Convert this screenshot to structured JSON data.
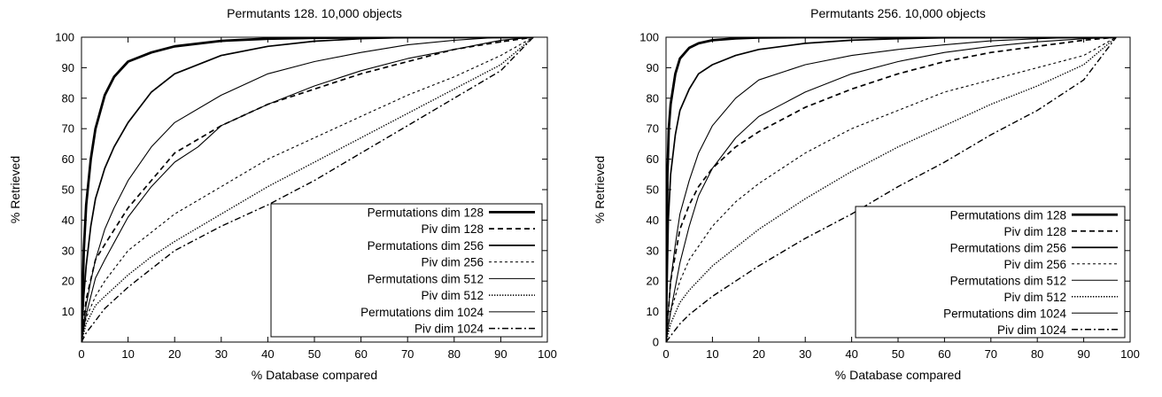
{
  "chart_data": [
    {
      "type": "line",
      "title": "Permutants 128. 10,000 objects",
      "xlabel": "% Database compared",
      "ylabel": "% Retrieved",
      "xlim": [
        0,
        100
      ],
      "ylim": [
        0,
        100
      ],
      "x_ticks": [
        "0",
        "10",
        "20",
        "30",
        "40",
        "50",
        "60",
        "70",
        "80",
        "90",
        "100"
      ],
      "y_ticks": [
        "10",
        "20",
        "30",
        "40",
        "50",
        "60",
        "70",
        "80",
        "90",
        "100"
      ],
      "grid": false,
      "legend_position": "bottom-right",
      "series": [
        {
          "name": "Permutations dim 128",
          "style": "thick-solid",
          "x": [
            0,
            0.5,
            1,
            2,
            3,
            5,
            7,
            10,
            15,
            20,
            30,
            40,
            50,
            60,
            70,
            80,
            90,
            97
          ],
          "y": [
            0,
            30,
            45,
            60,
            70,
            81,
            87,
            92,
            95,
            97,
            98.8,
            99.5,
            99.8,
            99.9,
            100,
            100,
            100,
            100
          ]
        },
        {
          "name": "Piv dim 128",
          "style": "dashed",
          "x": [
            0,
            1,
            3,
            5,
            10,
            15,
            20,
            30,
            40,
            50,
            60,
            70,
            80,
            90,
            97
          ],
          "y": [
            0,
            14,
            27,
            32,
            44,
            53,
            62,
            71,
            78,
            83,
            88,
            92,
            96,
            98.5,
            100
          ]
        },
        {
          "name": "Permutations dim 256",
          "style": "medium-solid",
          "x": [
            0,
            0.5,
            1,
            2,
            3,
            5,
            7,
            10,
            15,
            20,
            30,
            40,
            50,
            60,
            70,
            80,
            90,
            97
          ],
          "y": [
            0,
            15,
            25,
            38,
            47,
            57,
            64,
            72,
            82,
            88,
            94,
            97,
            98.7,
            99.5,
            99.9,
            100,
            100,
            100
          ]
        },
        {
          "name": "Piv dim 256",
          "style": "fine-dashed",
          "x": [
            0,
            1,
            3,
            5,
            10,
            15,
            20,
            30,
            40,
            50,
            60,
            70,
            80,
            90,
            97
          ],
          "y": [
            0,
            8,
            15,
            20,
            30,
            36,
            42,
            51,
            60,
            67,
            74,
            81,
            87,
            94,
            100
          ]
        },
        {
          "name": "Permutations dim 512",
          "style": "thin-solid",
          "x": [
            0,
            1,
            2,
            3,
            5,
            7,
            10,
            15,
            20,
            30,
            40,
            50,
            60,
            70,
            80,
            90,
            97
          ],
          "y": [
            0,
            12,
            20,
            27,
            37,
            44,
            53,
            64,
            72,
            81,
            88,
            92,
            95,
            97.5,
            99,
            100,
            100
          ]
        },
        {
          "name": "Piv dim 512",
          "style": "dotted",
          "x": [
            0,
            1,
            3,
            5,
            10,
            15,
            20,
            30,
            40,
            50,
            60,
            70,
            80,
            90,
            97
          ],
          "y": [
            0,
            6,
            12,
            15,
            22,
            28,
            33,
            42,
            51,
            59,
            67,
            75,
            83,
            91,
            100
          ]
        },
        {
          "name": "Permutations dim 1024",
          "style": "thin-solid",
          "x": [
            0,
            1,
            3,
            5,
            10,
            15,
            20,
            25,
            30,
            40,
            50,
            60,
            70,
            80,
            90,
            97
          ],
          "y": [
            0,
            9,
            21,
            27,
            41,
            51,
            59,
            64,
            71,
            78,
            84,
            89,
            93,
            96,
            99,
            100
          ]
        },
        {
          "name": "Piv dim 1024",
          "style": "dash-dot",
          "x": [
            0,
            1,
            3,
            5,
            10,
            15,
            20,
            30,
            40,
            50,
            60,
            70,
            80,
            90,
            97
          ],
          "y": [
            0,
            3,
            7,
            11,
            18,
            24,
            30,
            38,
            45,
            53,
            62,
            71,
            80,
            89,
            100
          ]
        }
      ]
    },
    {
      "type": "line",
      "title": "Permutants 256. 10,000 objects",
      "xlabel": "% Database compared",
      "ylabel": "% Retrieved",
      "xlim": [
        0,
        100
      ],
      "ylim": [
        0,
        100
      ],
      "x_ticks": [
        "0",
        "10",
        "20",
        "30",
        "40",
        "50",
        "60",
        "70",
        "80",
        "90",
        "100"
      ],
      "y_ticks": [
        "0",
        "10",
        "20",
        "30",
        "40",
        "50",
        "60",
        "70",
        "80",
        "90",
        "100"
      ],
      "grid": false,
      "legend_position": "bottom-right",
      "series": [
        {
          "name": "Permutations dim 128",
          "style": "thick-solid",
          "x": [
            0,
            0.3,
            0.6,
            1,
            2,
            3,
            5,
            7,
            10,
            15,
            20,
            30,
            40,
            50,
            97
          ],
          "y": [
            0,
            55,
            70,
            78,
            88,
            93,
            96.5,
            98,
            99,
            99.6,
            99.9,
            100,
            100,
            100,
            100
          ]
        },
        {
          "name": "Piv dim 128",
          "style": "dashed",
          "x": [
            0,
            1,
            3,
            5,
            7,
            10,
            15,
            20,
            25,
            30,
            40,
            50,
            60,
            70,
            80,
            90,
            97
          ],
          "y": [
            0,
            20,
            37,
            45,
            51,
            57,
            64,
            69,
            73,
            77,
            83,
            88,
            92,
            95,
            97,
            99,
            100
          ]
        },
        {
          "name": "Permutations dim 256",
          "style": "medium-solid",
          "x": [
            0,
            0.5,
            1,
            2,
            3,
            5,
            7,
            10,
            15,
            20,
            30,
            40,
            50,
            60,
            70,
            80,
            90,
            97
          ],
          "y": [
            0,
            40,
            55,
            68,
            76,
            83,
            88,
            91,
            94,
            96,
            98,
            99,
            99.5,
            99.8,
            100,
            100,
            100,
            100
          ]
        },
        {
          "name": "Piv dim 256",
          "style": "fine-dashed",
          "x": [
            0,
            1,
            3,
            5,
            10,
            15,
            20,
            30,
            40,
            50,
            60,
            70,
            80,
            90,
            97
          ],
          "y": [
            0,
            10,
            20,
            27,
            38,
            46,
            52,
            62,
            70,
            76,
            82,
            86,
            90,
            94,
            100
          ]
        },
        {
          "name": "Permutations dim 512",
          "style": "thin-solid",
          "x": [
            0,
            1,
            2,
            3,
            5,
            7,
            10,
            15,
            20,
            30,
            40,
            50,
            60,
            70,
            80,
            90,
            97
          ],
          "y": [
            0,
            20,
            32,
            42,
            53,
            62,
            71,
            80,
            86,
            91,
            94,
            96,
            97.5,
            98.8,
            99.5,
            100,
            100
          ]
        },
        {
          "name": "Piv dim 512",
          "style": "dotted",
          "x": [
            0,
            1,
            3,
            5,
            10,
            15,
            20,
            30,
            40,
            50,
            60,
            70,
            80,
            90,
            97
          ],
          "y": [
            0,
            6,
            13,
            17,
            25,
            31,
            37,
            47,
            56,
            64,
            71,
            78,
            84,
            91,
            100
          ]
        },
        {
          "name": "Permutations dim 1024",
          "style": "thin-solid",
          "x": [
            0,
            1,
            3,
            5,
            7,
            10,
            15,
            20,
            25,
            30,
            40,
            50,
            60,
            70,
            80,
            90,
            97
          ],
          "y": [
            0,
            10,
            26,
            38,
            48,
            57,
            67,
            74,
            78,
            82,
            88,
            92,
            95,
            97,
            98.5,
            99.5,
            100
          ]
        },
        {
          "name": "Piv dim 1024",
          "style": "dash-dot",
          "x": [
            0,
            1,
            3,
            5,
            10,
            15,
            20,
            30,
            40,
            50,
            60,
            70,
            80,
            90,
            97
          ],
          "y": [
            0,
            2,
            6,
            9,
            15,
            20,
            25,
            34,
            42,
            51,
            59,
            68,
            76,
            86,
            100
          ]
        }
      ]
    }
  ]
}
